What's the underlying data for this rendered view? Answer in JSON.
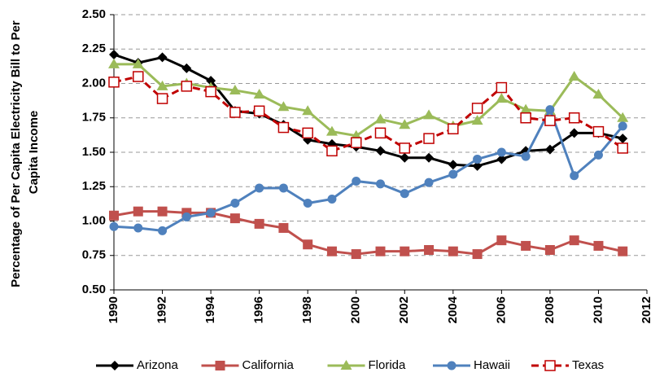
{
  "chart_data": {
    "type": "line",
    "ylabel": [
      "Percentage of Per Capita Electricity Bill to Per",
      "Capita Income"
    ],
    "x": [
      1990,
      1991,
      1992,
      1993,
      1994,
      1995,
      1996,
      1997,
      1998,
      1999,
      2000,
      2001,
      2002,
      2003,
      2004,
      2005,
      2006,
      2007,
      2008,
      2009,
      2010,
      2011
    ],
    "xlim": [
      1990,
      2012
    ],
    "xticks": [
      1990,
      1992,
      1994,
      1996,
      1998,
      2000,
      2002,
      2004,
      2006,
      2008,
      2010,
      2012
    ],
    "ylim": [
      0.5,
      2.5
    ],
    "yticks": [
      {
        "value": 0.5,
        "label": "0.50"
      },
      0.75,
      {
        "value": 1,
        "label": "1.00"
      },
      1.25,
      {
        "value": 1.5,
        "label": "1.50"
      },
      1.75,
      {
        "value": 2,
        "label": "2.00"
      },
      2.25,
      {
        "value": 2.5,
        "label": "2.50"
      }
    ],
    "grid": true,
    "legend": "bottom",
    "series": [
      {
        "name": "Arizona",
        "color": "#000000",
        "marker": "diamond",
        "dashed": false,
        "values": [
          2.21,
          2.15,
          2.19,
          2.11,
          2.02,
          1.8,
          1.78,
          1.7,
          1.59,
          1.56,
          1.54,
          1.51,
          1.46,
          1.46,
          1.41,
          1.4,
          1.45,
          1.51,
          1.52,
          1.64,
          1.64,
          1.6
        ]
      },
      {
        "name": "California",
        "color": "#c0504d",
        "marker": "square",
        "dashed": false,
        "values": [
          1.04,
          1.07,
          1.07,
          1.06,
          1.06,
          1.02,
          0.98,
          0.95,
          0.83,
          0.78,
          0.76,
          0.78,
          0.78,
          0.79,
          0.78,
          0.76,
          0.86,
          0.82,
          0.79,
          0.86,
          0.82,
          0.78
        ]
      },
      {
        "name": "Florida",
        "color": "#9bbb59",
        "marker": "triangle",
        "dashed": false,
        "values": [
          2.14,
          2.14,
          1.98,
          2.0,
          1.97,
          1.95,
          1.92,
          1.83,
          1.8,
          1.65,
          1.62,
          1.74,
          1.7,
          1.77,
          1.69,
          1.73,
          1.89,
          1.81,
          1.8,
          2.05,
          1.92,
          1.75
        ]
      },
      {
        "name": "Hawaii",
        "color": "#4f81bd",
        "marker": "circle",
        "dashed": false,
        "values": [
          0.96,
          0.95,
          0.93,
          1.03,
          1.06,
          1.13,
          1.24,
          1.24,
          1.13,
          1.16,
          1.29,
          1.27,
          1.2,
          1.28,
          1.34,
          1.45,
          1.5,
          1.47,
          1.81,
          1.33,
          1.48,
          1.69
        ]
      },
      {
        "name": "Texas",
        "color": "#c00000",
        "marker": "open-square",
        "dashed": true,
        "values": [
          2.01,
          2.05,
          1.89,
          1.98,
          1.94,
          1.79,
          1.8,
          1.68,
          1.64,
          1.51,
          1.57,
          1.64,
          1.53,
          1.6,
          1.67,
          1.82,
          1.97,
          1.75,
          1.73,
          1.75,
          1.65,
          1.53
        ]
      }
    ]
  }
}
